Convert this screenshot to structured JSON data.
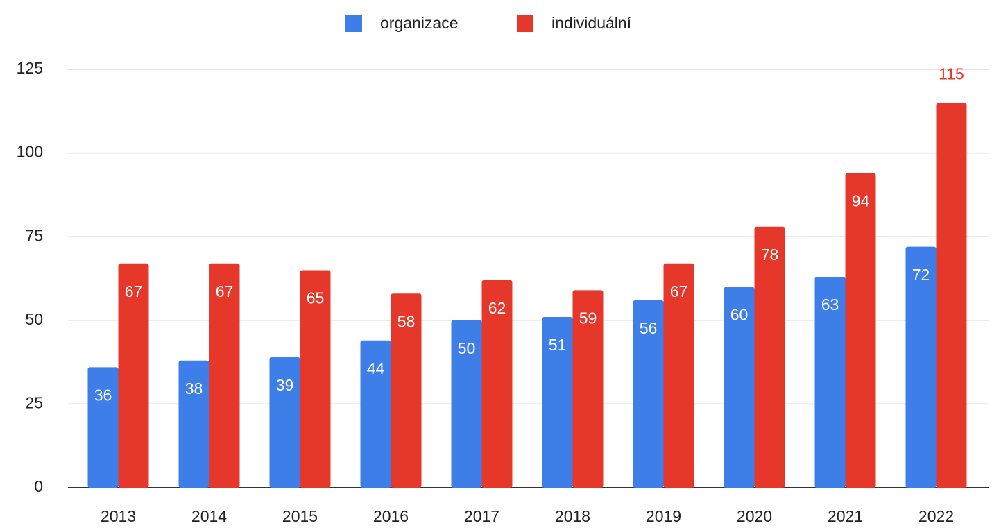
{
  "chart_data": {
    "type": "bar",
    "categories": [
      "2013",
      "2014",
      "2015",
      "2016",
      "2017",
      "2018",
      "2019",
      "2020",
      "2021",
      "2022"
    ],
    "series": [
      {
        "name": "organizace",
        "color": "#3d7ee8",
        "values": [
          36,
          38,
          39,
          44,
          50,
          51,
          56,
          60,
          63,
          72
        ]
      },
      {
        "name": "individuální",
        "color": "#e5382a",
        "values": [
          67,
          67,
          65,
          58,
          62,
          59,
          67,
          78,
          94,
          115
        ]
      }
    ],
    "ylim": [
      0,
      125
    ],
    "yticks": [
      0,
      25,
      50,
      75,
      100,
      125
    ],
    "grid": true,
    "legend": "top"
  }
}
